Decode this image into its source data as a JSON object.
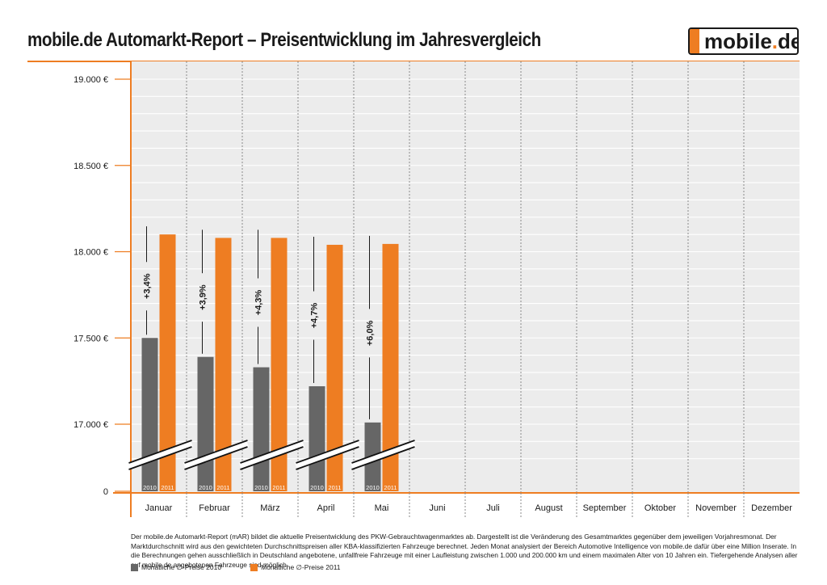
{
  "header": {
    "title": "mobile.de Automarkt-Report – Preisentwicklung im Jahresvergleich",
    "logo_main": "mobile",
    "logo_dot": ".",
    "logo_tld": "de"
  },
  "colors": {
    "series_2010": "#666666",
    "series_2011": "#ee7d22",
    "accent": "#ee7d22",
    "plot_bg": "#ececec"
  },
  "chart_data": {
    "type": "bar",
    "categories": [
      "Januar",
      "Februar",
      "März",
      "April",
      "Mai",
      "Juni",
      "Juli",
      "August",
      "September",
      "Oktober",
      "November",
      "Dezember"
    ],
    "series": [
      {
        "name": "2010",
        "values": [
          17500,
          17390,
          17330,
          17220,
          17010,
          null,
          null,
          null,
          null,
          null,
          null,
          null
        ]
      },
      {
        "name": "2011",
        "values": [
          18100,
          18080,
          18080,
          18040,
          18045,
          null,
          null,
          null,
          null,
          null,
          null,
          null
        ]
      }
    ],
    "changes": [
      "+3,4%",
      "+3,9%",
      "+4,3%",
      "+4,7%",
      "+6,0%"
    ],
    "y_ticks": [
      {
        "value": 0,
        "label": "0"
      },
      {
        "value": 17000,
        "label": "17.000 €"
      },
      {
        "value": 17500,
        "label": "17.500 €"
      },
      {
        "value": 18000,
        "label": "18.000 €"
      },
      {
        "value": 18500,
        "label": "18.500 €"
      },
      {
        "value": 19000,
        "label": "19.000 €"
      }
    ],
    "ylim": [
      16750,
      19000
    ],
    "axis_break": true,
    "grid": true,
    "title": "",
    "xlabel": "",
    "ylabel": ""
  },
  "footnote": "Der mobile.de Automarkt-Report (mAR) bildet die aktuelle Preisentwicklung des PKW-Gebrauchtwagenmarktes ab. Dargestellt ist die Veränderung des Gesamtmarktes gegenüber dem jeweiligen Vorjahresmonat. Der Marktdurchschnitt wird aus den gewichteten Durchschnittspreisen aller KBA-klassifizierten Fahrzeuge berechnet. Jeden Monat analysiert der Bereich Automotive Intelligence von mobile.de dafür über eine Million Inserate. In die Berechnungen gehen ausschließlich in Deutschland angebotene, unfallfreie Fahrzeuge mit einer Laufleistung zwischen 1.000 und 200.000 km und einem maximalen Alter von 10 Jahren ein. Tiefergehende Analysen aller auf mobile.de angebotenen Fahrzeuge sind möglich.",
  "legend": {
    "item_2010": "Monatliche ∅-Preise 2010",
    "item_2011": "Monatliche ∅-Preise 2011"
  }
}
